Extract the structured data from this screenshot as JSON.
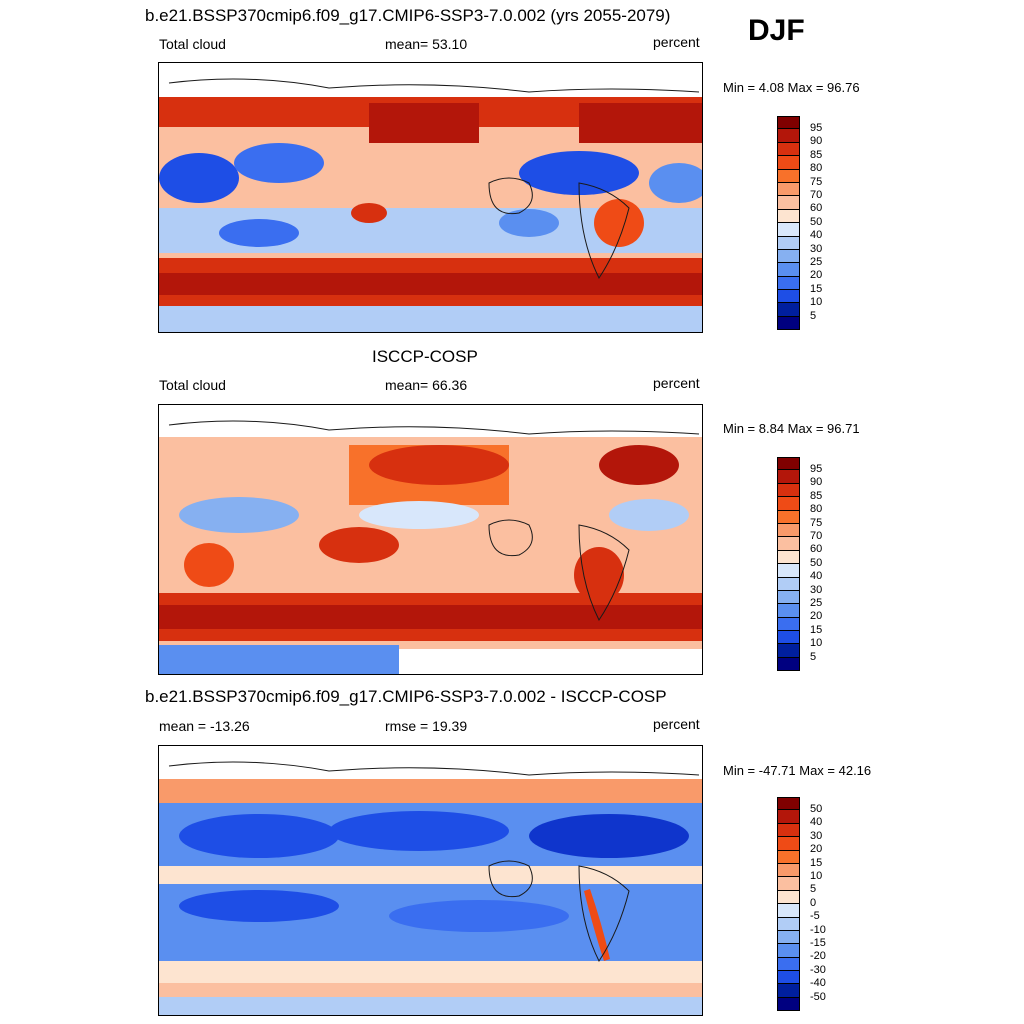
{
  "season": "DJF",
  "colors": {
    "positive_scale": [
      "#800000",
      "#b3160a",
      "#d7300f",
      "#ef4b16",
      "#f8712a",
      "#f99a6a",
      "#fbbfa0",
      "#fde4d0",
      "#ffffff",
      "#d8e7fb",
      "#b1cdf6",
      "#86b0f1",
      "#5a8ff0",
      "#3a6ef0",
      "#1e4ee6",
      "#0f35cc",
      "#001f9e",
      "#000080"
    ],
    "land_outline": "#1a1a1a"
  },
  "panels": [
    {
      "title": "b.e21.BSSP370cmip6.f09_g17.CMIP6-SSP3-7.0.002 (yrs 2055-2079)",
      "left": "Total cloud",
      "center": "mean=  53.10",
      "right": "percent",
      "minmax": "Min =   4.08 Max =  96.76",
      "colorbar": [
        "95",
        "90",
        "85",
        "80",
        "75",
        "70",
        "60",
        "50",
        "40",
        "30",
        "25",
        "20",
        "15",
        "10",
        "5"
      ]
    },
    {
      "title": "ISCCP-COSP",
      "left": "Total cloud",
      "center": "mean=  66.36",
      "right": "percent",
      "minmax": "Min =   8.84 Max =  96.71",
      "colorbar": [
        "95",
        "90",
        "85",
        "80",
        "75",
        "70",
        "60",
        "50",
        "40",
        "30",
        "25",
        "20",
        "15",
        "10",
        "5"
      ]
    },
    {
      "title": "b.e21.BSSP370cmip6.f09_g17.CMIP6-SSP3-7.0.002 - ISCCP-COSP",
      "left": "mean = -13.26",
      "center": "rmse =  19.39",
      "right": "percent",
      "minmax": "Min = -47.71 Max =  42.16",
      "colorbar": [
        "50",
        "40",
        "30",
        "20",
        "15",
        "10",
        "5",
        "0",
        "-5",
        "-10",
        "-15",
        "-20",
        "-30",
        "-40",
        "-50"
      ]
    }
  ]
}
